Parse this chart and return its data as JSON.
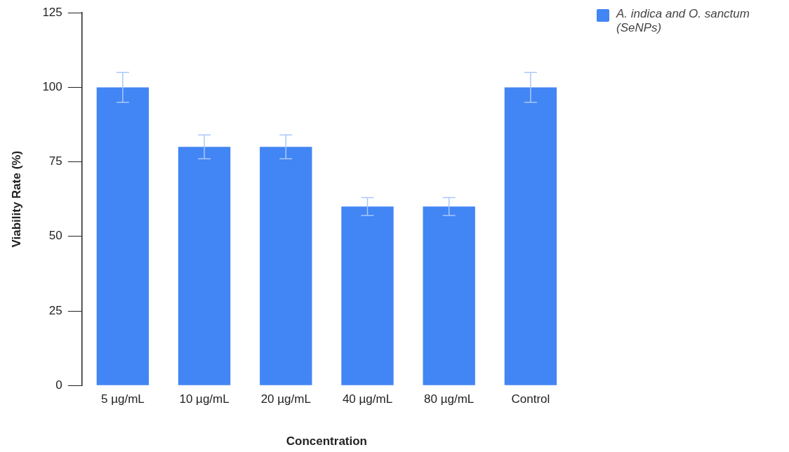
{
  "chart_data": {
    "type": "bar",
    "xlabel": "Concentration",
    "ylabel": "Viability Rate (%)",
    "categories": [
      "5 µg/mL",
      "10 µg/mL",
      "20 µg/mL",
      "40 µg/mL",
      "80 µg/mL",
      "Control"
    ],
    "series": [
      {
        "name": "A. indica and O. sanctum (SeNPs)",
        "color": "#4285f4",
        "values": [
          100,
          80,
          80,
          60,
          60,
          100
        ],
        "errors": [
          5,
          4,
          4,
          3,
          3,
          5
        ]
      }
    ],
    "ylim": [
      0,
      125
    ],
    "yticks": [
      0,
      25,
      50,
      75,
      100,
      125
    ],
    "grid": false,
    "legend": "top right"
  }
}
